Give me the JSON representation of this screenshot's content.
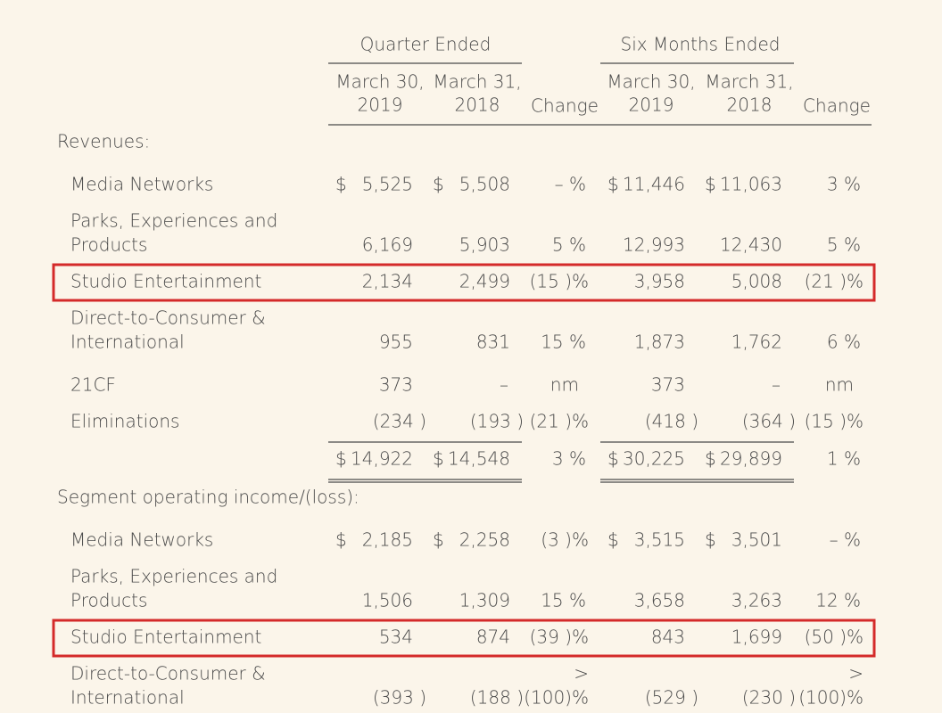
{
  "table": {
    "header": {
      "groups": [
        "Quarter Ended",
        "Six Months Ended"
      ],
      "columns": [
        [
          "March 30,",
          "2019"
        ],
        [
          "March 31,",
          "2018"
        ],
        "Change",
        [
          "March 30,",
          "2019"
        ],
        [
          "March 31,",
          "2018"
        ],
        "Change"
      ]
    },
    "sections": [
      {
        "title": "Revenues:",
        "rows": [
          {
            "label": "Media Networks",
            "cells": [
              {
                "sym": "$",
                "num": "5,525"
              },
              {
                "sym": "$",
                "num": "5,508"
              },
              "– %",
              {
                "sym": "$",
                "num": "11,446"
              },
              {
                "sym": "$",
                "num": "11,063"
              },
              "3 %"
            ]
          },
          {
            "label": [
              "Parks, Experiences and",
              "Products"
            ],
            "cells": [
              "6,169",
              "5,903",
              "5 %",
              "12,993",
              "12,430",
              "5 %"
            ]
          },
          {
            "label": "Studio Entertainment",
            "highlighted": true,
            "cells": [
              "2,134",
              "2,499",
              "(15 )%",
              "3,958",
              "5,008",
              "(21 )%"
            ]
          },
          {
            "label": [
              "Direct-to-Consumer &",
              "International"
            ],
            "cells": [
              "955",
              "831",
              "15 %",
              "1,873",
              "1,762",
              "6 %"
            ]
          },
          {
            "label": "21CF",
            "cells": [
              "373",
              "–",
              "nm",
              "373",
              "–",
              "nm"
            ]
          },
          {
            "label": "Eliminations",
            "cells": [
              "(234 )",
              "(193 )",
              "(21 )%",
              "(418 )",
              "(364 )",
              "(15 )%"
            ]
          }
        ],
        "total": [
          {
            "sym": "$",
            "num": "14,922"
          },
          {
            "sym": "$",
            "num": "14,548"
          },
          "3 %",
          {
            "sym": "$",
            "num": "30,225"
          },
          {
            "sym": "$",
            "num": "29,899"
          },
          "1 %"
        ]
      },
      {
        "title": "Segment operating income/(loss):",
        "rows": [
          {
            "label": "Media Networks",
            "cells": [
              {
                "sym": "$",
                "num": "2,185"
              },
              {
                "sym": "$",
                "num": "2,258"
              },
              "(3 )%",
              {
                "sym": "$",
                "num": "3,515"
              },
              {
                "sym": "$",
                "num": "3,501"
              },
              "– %"
            ]
          },
          {
            "label": [
              "Parks, Experiences and",
              "Products"
            ],
            "cells": [
              "1,506",
              "1,309",
              "15 %",
              "3,658",
              "3,263",
              "12 %"
            ]
          },
          {
            "label": "Studio Entertainment",
            "highlighted": true,
            "cells": [
              "534",
              "874",
              "(39 )%",
              "843",
              "1,699",
              "(50 )%"
            ]
          },
          {
            "label": [
              "Direct-to-Consumer &",
              "International"
            ],
            "cells": [
              "(393 )",
              "(188 )",
              [
                ">",
                "(100)%"
              ],
              "(529 )",
              "(230 )",
              [
                ">",
                "(100)%"
              ]
            ]
          }
        ]
      }
    ]
  }
}
